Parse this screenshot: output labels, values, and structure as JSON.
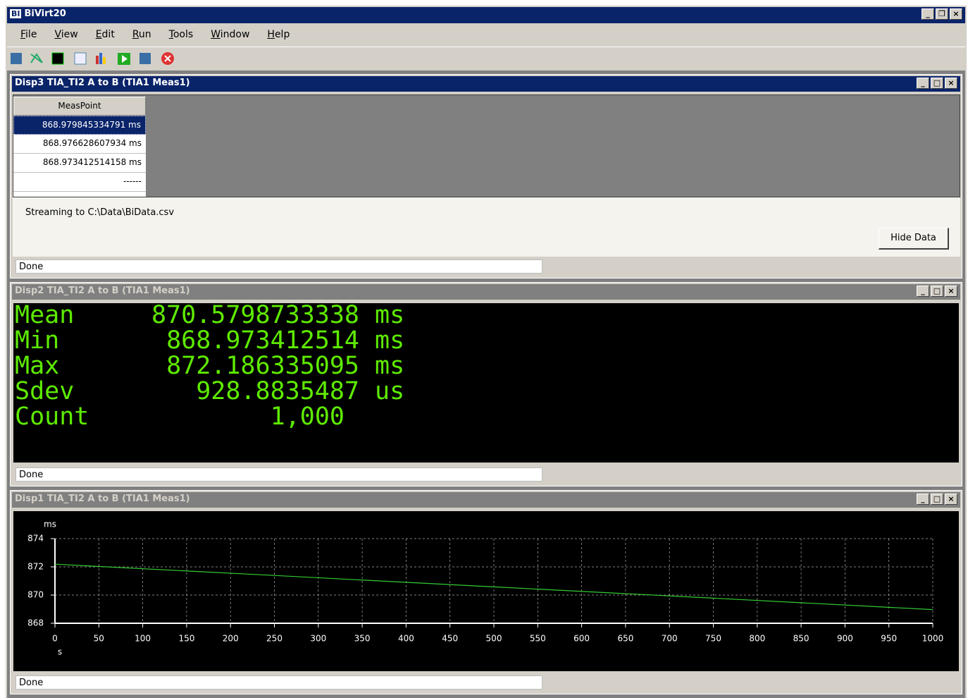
{
  "app": {
    "title": "BiVirt20",
    "icon": "BI",
    "menu": [
      "File",
      "View",
      "Edit",
      "Run",
      "Tools",
      "Window",
      "Help"
    ]
  },
  "disp3": {
    "title": "Disp3 TIA_TI2 A to B (TIA1 Meas1)",
    "column": "MeasPoint",
    "rows": [
      "868.979845334791 ms",
      "868.976628607934 ms",
      "868.973412514158 ms",
      "------"
    ],
    "stream": "Streaming to C:\\Data\\BiData.csv",
    "button": "Hide Data",
    "status": "Done"
  },
  "disp2": {
    "title": "Disp2 TIA_TI2 A to B (TIA1 Meas1)",
    "stats": [
      {
        "label": "Mean",
        "value": "870.5798733338",
        "unit": "ms"
      },
      {
        "label": "Min",
        "value": "868.973412514",
        "unit": "ms"
      },
      {
        "label": "Max",
        "value": "872.186335095",
        "unit": "ms"
      },
      {
        "label": "Sdev",
        "value": "928.8835487",
        "unit": "us"
      },
      {
        "label": "Count",
        "value": "1,000"
      }
    ],
    "status": "Done"
  },
  "disp1": {
    "title": "Disp1 TIA_TI2 A to B (TIA1 Meas1)",
    "status": "Done"
  },
  "chart_data": {
    "type": "line",
    "x_label": "s",
    "y_label": "ms",
    "x": [
      0,
      250,
      500,
      750,
      1000
    ],
    "series": [
      {
        "name": "Meas1",
        "color": "#33cc33",
        "values": [
          872.19,
          871.39,
          870.58,
          869.78,
          868.97
        ]
      }
    ],
    "xlim": [
      0,
      1000
    ],
    "xticks": [
      0,
      50,
      100,
      150,
      200,
      250,
      300,
      350,
      400,
      450,
      500,
      550,
      600,
      650,
      700,
      750,
      800,
      850,
      900,
      950,
      1000
    ],
    "ylim": [
      868,
      874
    ],
    "yticks": [
      868,
      870,
      872,
      874
    ],
    "grid": true
  }
}
